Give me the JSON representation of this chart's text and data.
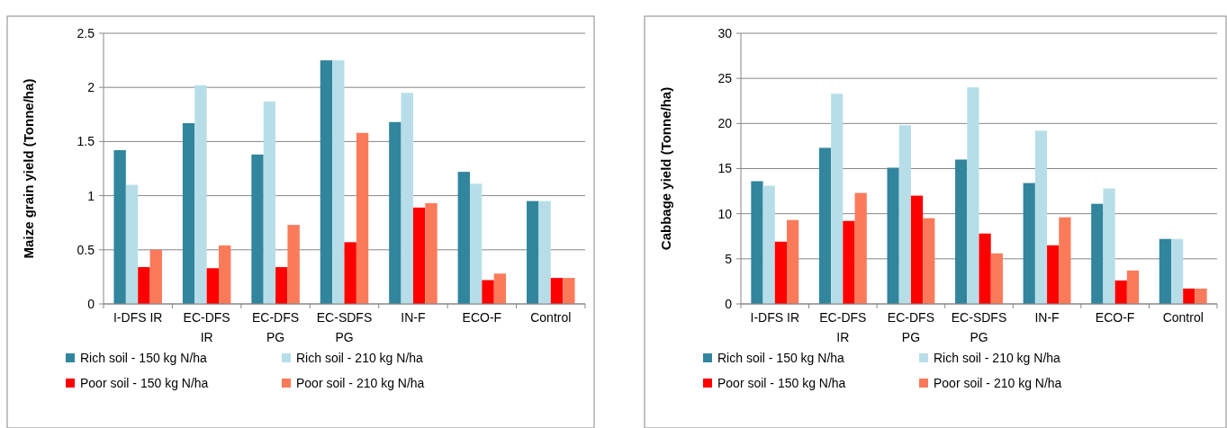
{
  "chart_data": [
    {
      "type": "bar",
      "ylabel": "Maize grain yield (Tonne/ha)",
      "categories": [
        "I-DFS IR",
        "EC-DFS IR",
        "EC-DFS PG",
        "EC-SDFS PG",
        "IN-F",
        "ECO-F",
        "Control"
      ],
      "ylim": [
        0,
        2.5
      ],
      "yticks": [
        0,
        0.5,
        1,
        1.5,
        2,
        2.5
      ],
      "grid": "y",
      "legend": "bottom",
      "series": [
        {
          "name": "Rich soil - 150 kg N/ha",
          "color": "#31859c",
          "values": [
            1.42,
            1.67,
            1.38,
            2.25,
            1.68,
            1.22,
            0.95
          ]
        },
        {
          "name": "Rich soil - 210 kg N/ha",
          "color": "#b7dee8",
          "values": [
            1.1,
            2.02,
            1.87,
            2.25,
            1.95,
            1.11,
            0.95
          ]
        },
        {
          "name": "Poor soil - 150 kg N/ha",
          "color": "#ff0000",
          "values": [
            0.34,
            0.33,
            0.34,
            0.57,
            0.89,
            0.22,
            0.24
          ]
        },
        {
          "name": "Poor soil - 210 kg N/ha",
          "color": "#fa7a5a",
          "values": [
            0.5,
            0.54,
            0.73,
            1.58,
            0.93,
            0.28,
            0.24
          ]
        }
      ]
    },
    {
      "type": "bar",
      "ylabel": "Cabbage yield (Tonne/ha)",
      "categories": [
        "I-DFS IR",
        "EC-DFS IR",
        "EC-DFS PG",
        "EC-SDFS PG",
        "IN-F",
        "ECO-F",
        "Control"
      ],
      "ylim": [
        0,
        30
      ],
      "yticks": [
        0,
        5,
        10,
        15,
        20,
        25,
        30
      ],
      "grid": "y",
      "legend": "bottom",
      "series": [
        {
          "name": "Rich soil - 150 kg N/ha",
          "color": "#31859c",
          "values": [
            13.6,
            17.3,
            15.1,
            16.0,
            13.4,
            11.1,
            7.2
          ]
        },
        {
          "name": "Rich soil - 210 kg N/ha",
          "color": "#b7dee8",
          "values": [
            13.1,
            23.3,
            19.8,
            24.0,
            19.2,
            12.8,
            7.2
          ]
        },
        {
          "name": "Poor soil - 150 kg N/ha",
          "color": "#ff0000",
          "values": [
            6.9,
            9.2,
            12.0,
            7.8,
            6.5,
            2.6,
            1.7
          ]
        },
        {
          "name": "Poor soil - 210 kg N/ha",
          "color": "#fa7a5a",
          "values": [
            9.3,
            12.3,
            9.5,
            5.6,
            9.6,
            3.7,
            1.7
          ]
        }
      ]
    }
  ]
}
